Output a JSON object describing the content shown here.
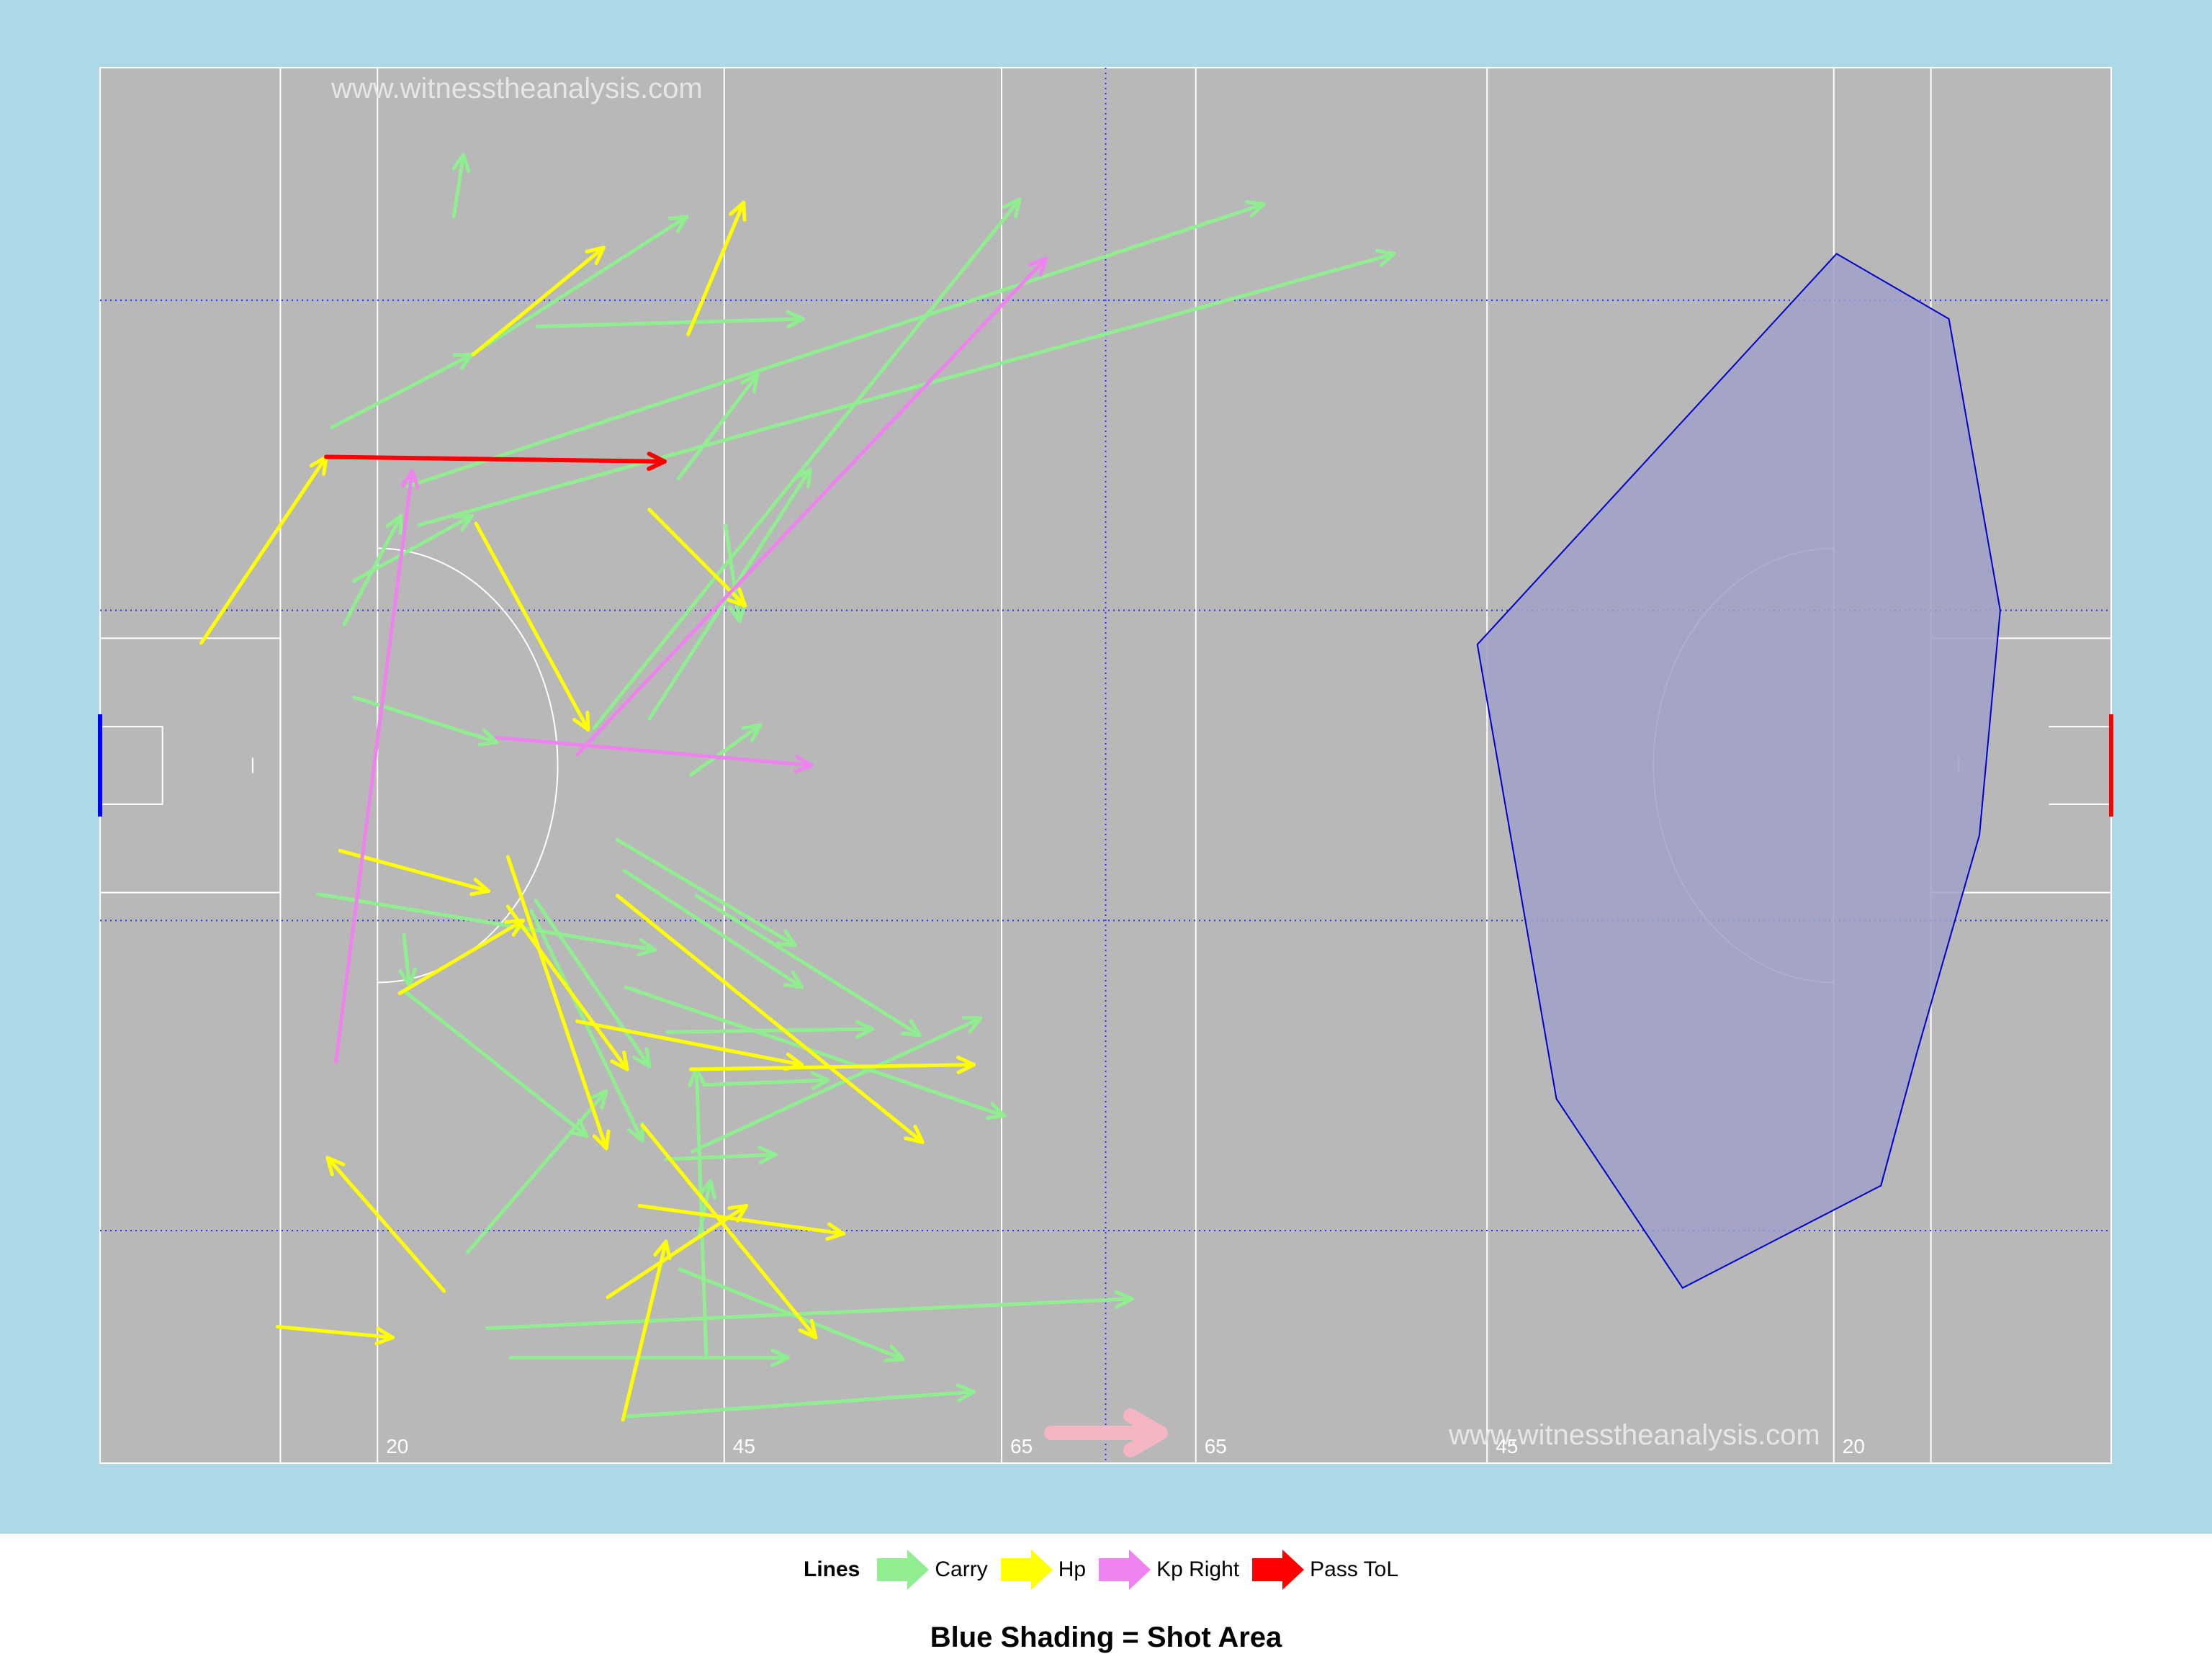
{
  "watermark": "www.witnesstheanalysis.com",
  "distance_labels": [
    "20",
    "45",
    "65",
    "65",
    "45",
    "20"
  ],
  "legend": {
    "title": "Lines",
    "items": [
      {
        "label": "Carry",
        "color": "#90EE90"
      },
      {
        "label": "Hp",
        "color": "#FFFF00"
      },
      {
        "label": "Kp Right",
        "color": "#EE82EE"
      },
      {
        "label": "Pass ToL",
        "color": "#FF0000"
      }
    ]
  },
  "caption": "Blue Shading = Shot Area",
  "colors": {
    "background": "#ADD8E6",
    "pitch": "#B8B8B8",
    "shot_area_fill": "#A0A0C8",
    "shot_area_stroke": "#0000CD",
    "direction_arrow": "#F4B6C2"
  },
  "chart_data": {
    "type": "pitch-arrow-map",
    "x_range": [
      0,
      145
    ],
    "y_range": [
      0,
      90
    ],
    "pitch_lines_x": [
      13,
      20,
      45,
      65,
      79,
      100,
      125,
      132
    ],
    "halfway_x": 72.5,
    "series": [
      {
        "name": "Carry",
        "color": "#90EE90",
        "arrows": [
          [
            25.5,
            80.4,
            26.2,
            84.4
          ],
          [
            31.5,
            73.3,
            50.7,
            73.8
          ],
          [
            16.7,
            66.8,
            26.8,
            71.5
          ],
          [
            26.8,
            71.5,
            42.3,
            80.4
          ],
          [
            22.2,
            63.0,
            83.9,
            81.2
          ],
          [
            23.0,
            60.5,
            93.3,
            78.0
          ],
          [
            41.7,
            63.5,
            47.4,
            70.2
          ],
          [
            17.6,
            54.1,
            21.7,
            61.1
          ],
          [
            18.3,
            56.9,
            26.8,
            61.1
          ],
          [
            45.1,
            60.5,
            46.1,
            54.3
          ],
          [
            35.6,
            47.4,
            66.3,
            81.5
          ],
          [
            39.6,
            48.0,
            51.2,
            64.1
          ],
          [
            42.6,
            44.4,
            47.6,
            47.6
          ],
          [
            18.3,
            49.4,
            28.6,
            46.5
          ],
          [
            15.7,
            36.7,
            40.0,
            33.1
          ],
          [
            21.9,
            34.1,
            22.3,
            30.8
          ],
          [
            37.3,
            40.2,
            50.1,
            33.4
          ],
          [
            37.8,
            38.2,
            50.6,
            30.7
          ],
          [
            43.0,
            36.6,
            59.1,
            27.6
          ],
          [
            31.4,
            36.3,
            39.6,
            25.6
          ],
          [
            37.9,
            30.7,
            65.2,
            22.4
          ],
          [
            22.0,
            30.4,
            35.1,
            21.1
          ],
          [
            40.9,
            27.8,
            55.7,
            28.0
          ],
          [
            43.6,
            24.4,
            52.5,
            24.7
          ],
          [
            40.8,
            19.6,
            48.7,
            19.9
          ],
          [
            42.7,
            20.1,
            63.5,
            28.7
          ],
          [
            26.5,
            13.6,
            36.5,
            24.0
          ],
          [
            43.7,
            6.9,
            43.0,
            25.4
          ],
          [
            43.2,
            14.7,
            44.0,
            18.2
          ],
          [
            27.9,
            8.7,
            74.4,
            10.6
          ],
          [
            29.6,
            6.8,
            49.6,
            6.8
          ],
          [
            41.8,
            12.5,
            57.9,
            6.7
          ],
          [
            37.8,
            3.0,
            63.0,
            4.6
          ],
          [
            31.1,
            35.6,
            39.1,
            20.8
          ]
        ]
      },
      {
        "name": "Hp",
        "color": "#FFFF00",
        "arrows": [
          [
            7.3,
            52.9,
            16.3,
            64.9
          ],
          [
            26.9,
            71.5,
            36.3,
            78.4
          ],
          [
            42.4,
            72.8,
            46.4,
            81.3
          ],
          [
            39.6,
            61.5,
            46.5,
            55.3
          ],
          [
            27.1,
            60.6,
            35.2,
            47.3
          ],
          [
            17.3,
            39.5,
            28.0,
            36.9
          ],
          [
            21.6,
            30.3,
            30.5,
            35.0
          ],
          [
            29.4,
            39.1,
            36.5,
            20.3
          ],
          [
            29.4,
            35.9,
            38.0,
            25.4
          ],
          [
            37.3,
            36.6,
            59.3,
            20.7
          ],
          [
            34.4,
            28.5,
            50.6,
            25.7
          ],
          [
            42.6,
            25.4,
            63.0,
            25.7
          ],
          [
            24.8,
            11.1,
            16.4,
            19.7
          ],
          [
            12.8,
            8.8,
            21.1,
            8.1
          ],
          [
            38.9,
            16.6,
            53.6,
            14.8
          ],
          [
            36.6,
            10.7,
            46.6,
            16.6
          ],
          [
            37.7,
            2.8,
            40.8,
            14.3
          ],
          [
            39.1,
            21.8,
            51.6,
            8.1
          ]
        ]
      },
      {
        "name": "Kp Right",
        "color": "#EE82EE",
        "arrows": [
          [
            17.0,
            25.9,
            22.5,
            64.0
          ],
          [
            34.4,
            45.7,
            68.2,
            77.7
          ],
          [
            28.6,
            46.8,
            51.3,
            45.0
          ]
        ]
      },
      {
        "name": "Pass ToL",
        "color": "#FF0000",
        "arrows": [
          [
            16.3,
            64.9,
            40.7,
            64.6
          ]
        ]
      }
    ],
    "shot_area_polygon": [
      [
        99.3,
        52.8
      ],
      [
        125.2,
        78.0
      ],
      [
        133.3,
        73.8
      ],
      [
        137.0,
        55.0
      ],
      [
        135.5,
        40.5
      ],
      [
        131.0,
        26.5
      ],
      [
        128.4,
        17.9
      ],
      [
        114.1,
        11.3
      ],
      [
        105.0,
        23.5
      ]
    ]
  }
}
